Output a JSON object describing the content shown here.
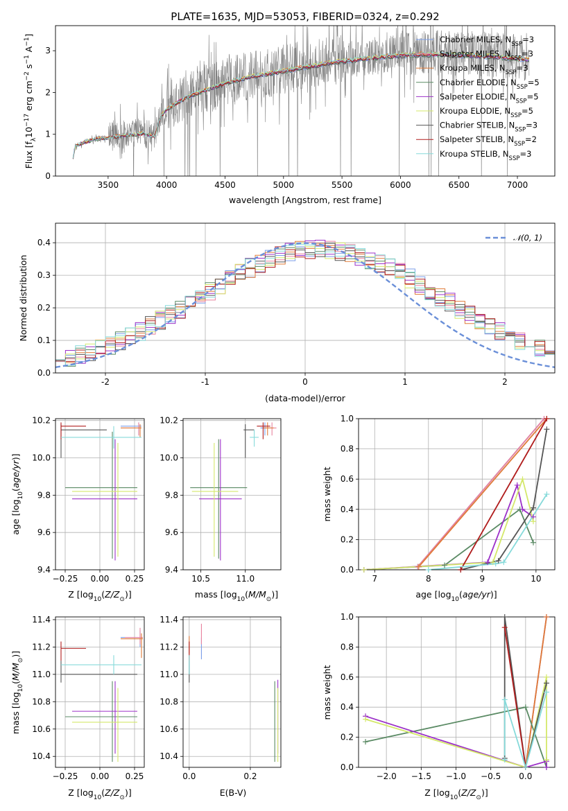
{
  "figure_title": "PLATE=1635, MJD=53053, FIBERID=0324, z=0.292",
  "colors": {
    "Chabrier MILES": "#7b9ee8",
    "Salpeter MILES": "#e8829e",
    "Kroupa MILES": "#e07b39",
    "Chabrier ELODIE": "#5a8a64",
    "Salpeter ELODIE": "#9b30c8",
    "Kroupa ELODIE": "#d4e86a",
    "Chabrier STELIB": "#555555",
    "Salpeter STELIB": "#b01c1c",
    "Kroupa STELIB": "#86dada",
    "data": "#808080",
    "normal": "#6a8fd8"
  },
  "chart_data": [
    {
      "id": "spectrum",
      "type": "line",
      "xlabel": "wavelength [Angstrom, rest frame]",
      "ylabel": "Flux [f_λ 10^-17 erg cm^-2 s^-1 A^-1]",
      "xlim": [
        3050,
        7320
      ],
      "ylim": [
        0,
        3.6
      ],
      "xticks": [
        3500,
        4000,
        4500,
        5000,
        5500,
        6000,
        6500,
        7000
      ],
      "yticks": [
        0,
        1,
        2,
        3
      ],
      "grid": false,
      "legend_position": "top-right",
      "legend": [
        {
          "label": "Chabrier MILES",
          "nssp": "3"
        },
        {
          "label": "Salpeter MILES",
          "nssp": "3"
        },
        {
          "label": "Kroupa MILES",
          "nssp": "3"
        },
        {
          "label": "Chabrier ELODIE",
          "nssp": "5"
        },
        {
          "label": "Salpeter ELODIE",
          "nssp": "5"
        },
        {
          "label": "Kroupa ELODIE",
          "nssp": "5"
        },
        {
          "label": "Chabrier STELIB",
          "nssp": "3"
        },
        {
          "label": "Salpeter STELIB",
          "nssp": "2"
        },
        {
          "label": "Kroupa STELIB",
          "nssp": "3"
        }
      ],
      "continuum": {
        "x": [
          3200,
          3220,
          3300,
          3400,
          3500,
          3600,
          3700,
          3800,
          3900,
          3950,
          4000,
          4100,
          4200,
          4300,
          4500,
          4700,
          4900,
          5000,
          5200,
          5400,
          5600,
          5800,
          6000,
          6200,
          6400,
          6600,
          6800,
          7000,
          7100
        ],
        "y": [
          0.45,
          0.72,
          0.82,
          0.9,
          0.93,
          0.97,
          1.0,
          1.03,
          0.95,
          1.45,
          1.62,
          1.8,
          1.95,
          2.05,
          2.25,
          2.4,
          2.5,
          2.55,
          2.65,
          2.75,
          2.82,
          2.88,
          2.93,
          2.95,
          2.95,
          2.92,
          2.9,
          2.85,
          2.82
        ]
      }
    },
    {
      "id": "residual-hist",
      "type": "line",
      "xlabel": "(data-model)/error",
      "ylabel": "Normed distribution",
      "xlim": [
        -2.5,
        2.5
      ],
      "ylim": [
        0,
        0.46
      ],
      "xticks": [
        -2,
        -1,
        0,
        1,
        2
      ],
      "yticks": [
        0.0,
        0.1,
        0.2,
        0.3,
        0.4
      ],
      "grid": true,
      "legend_position": "top-right",
      "legend_label": "𝒩(0, 1)",
      "bin_width": 0.1
    },
    {
      "id": "age-vs-Z",
      "type": "scatter",
      "xlabel": "Z [log10(Z/Z☉)]",
      "ylabel": "age [log10(age/yr)]",
      "xlim": [
        -0.32,
        0.32
      ],
      "ylim": [
        9.4,
        10.21
      ],
      "xticks": [
        -0.25,
        0.0,
        0.25
      ],
      "yticks": [
        9.4,
        9.6,
        9.8,
        10.0,
        10.2
      ],
      "grid": true
    },
    {
      "id": "age-vs-mass",
      "type": "scatter",
      "xlabel": "mass [log10(M/M☉)]",
      "xlim": [
        10.3,
        11.4
      ],
      "ylim": [
        9.4,
        10.21
      ],
      "xticks": [
        10.5,
        11.0
      ],
      "yticks": [
        9.4,
        9.6,
        9.8,
        10.0,
        10.2
      ],
      "grid": true
    },
    {
      "id": "weight-vs-age",
      "type": "line",
      "xlabel": "age [log10(age/yr)]",
      "ylabel": "mass weight",
      "xlim": [
        6.7,
        10.35
      ],
      "ylim": [
        0,
        1
      ],
      "xticks": [
        7,
        8,
        9,
        10
      ],
      "yticks": [
        0.0,
        0.2,
        0.4,
        0.6,
        0.8,
        1.0
      ],
      "grid": true,
      "series": [
        {
          "name": "Chabrier MILES",
          "x": [
            7.8,
            10.15
          ],
          "y": [
            0.02,
            1.0
          ]
        },
        {
          "name": "Salpeter MILES",
          "x": [
            7.8,
            10.15
          ],
          "y": [
            0.02,
            1.0
          ]
        },
        {
          "name": "Kroupa MILES",
          "x": [
            7.82,
            10.2
          ],
          "y": [
            0.02,
            1.0
          ]
        },
        {
          "name": "Chabrier ELODIE",
          "x": [
            6.8,
            8.3,
            9.7,
            9.95
          ],
          "y": [
            0.0,
            0.03,
            0.4,
            0.18
          ]
        },
        {
          "name": "Salpeter ELODIE",
          "x": [
            6.8,
            9.1,
            9.65,
            9.75,
            9.95
          ],
          "y": [
            0.0,
            0.05,
            0.56,
            0.4,
            0.35
          ]
        },
        {
          "name": "Kroupa ELODIE",
          "x": [
            6.8,
            9.2,
            9.75,
            9.95
          ],
          "y": [
            0.0,
            0.05,
            0.6,
            0.32
          ]
        },
        {
          "name": "Chabrier STELIB",
          "x": [
            8.6,
            9.3,
            9.95,
            10.2
          ],
          "y": [
            0.0,
            0.06,
            0.41,
            0.93
          ]
        },
        {
          "name": "Salpeter STELIB",
          "x": [
            8.6,
            10.2
          ],
          "y": [
            0.0,
            1.0
          ]
        },
        {
          "name": "Kroupa STELIB",
          "x": [
            8.0,
            9.25,
            9.4,
            10.2
          ],
          "y": [
            0.0,
            0.04,
            0.05,
            0.5
          ]
        }
      ]
    },
    {
      "id": "mass-vs-Z",
      "type": "scatter",
      "xlabel": "Z [log10(Z/Z☉)]",
      "ylabel": "mass [log10(M/M☉)]",
      "xlim": [
        -0.32,
        0.32
      ],
      "ylim": [
        10.32,
        11.42
      ],
      "xticks": [
        -0.25,
        0.0,
        0.25
      ],
      "yticks": [
        10.4,
        10.6,
        10.8,
        11.0,
        11.2,
        11.4
      ],
      "grid": true
    },
    {
      "id": "mass-vs-ebv",
      "type": "scatter",
      "xlabel": "E(B-V)",
      "xlim": [
        -0.02,
        0.3
      ],
      "ylim": [
        10.32,
        11.42
      ],
      "xticks": [
        0.0,
        0.2
      ],
      "yticks": [
        10.4,
        10.6,
        10.8,
        11.0,
        11.2,
        11.4
      ],
      "grid": true
    },
    {
      "id": "weight-vs-Z",
      "type": "line",
      "xlabel": "Z [log10(Z/Z☉)]",
      "ylabel": "mass weight",
      "xlim": [
        -2.4,
        0.42
      ],
      "ylim": [
        0,
        1
      ],
      "xticks": [
        -2.0,
        -1.5,
        -1.0,
        -0.5,
        0.0
      ],
      "yticks": [
        0.0,
        0.2,
        0.4,
        0.6,
        0.8,
        1.0
      ],
      "grid": true,
      "series": [
        {
          "name": "Chabrier MILES",
          "x": [
            0.0,
            0.3
          ],
          "y": [
            0.0,
            1.0
          ]
        },
        {
          "name": "Salpeter MILES",
          "x": [
            0.0,
            0.3
          ],
          "y": [
            0.0,
            1.0
          ]
        },
        {
          "name": "Kroupa MILES",
          "x": [
            0.0,
            0.3
          ],
          "y": [
            0.0,
            1.0
          ]
        },
        {
          "name": "Chabrier ELODIE",
          "x": [
            -2.3,
            -0.0,
            0.3,
            0.3
          ],
          "y": [
            0.17,
            0.4,
            0.0,
            0.05
          ]
        },
        {
          "name": "Salpeter ELODIE",
          "x": [
            -2.3,
            0.0,
            0.3,
            0.3
          ],
          "y": [
            0.34,
            0.0,
            0.04,
            0.0
          ]
        },
        {
          "name": "Kroupa ELODIE",
          "x": [
            -2.3,
            0.0,
            0.3,
            0.3
          ],
          "y": [
            0.32,
            0.0,
            0.6,
            0.05
          ]
        },
        {
          "name": "Chabrier STELIB",
          "x": [
            -0.3,
            -0.3,
            0.0,
            0.3
          ],
          "y": [
            0.06,
            1.0,
            0.0,
            0.56
          ]
        },
        {
          "name": "Salpeter STELIB",
          "x": [
            -0.3,
            0.0
          ],
          "y": [
            0.93,
            0.0
          ]
        },
        {
          "name": "Kroupa STELIB",
          "x": [
            -0.3,
            -0.3,
            0.0,
            0.3
          ],
          "y": [
            0.05,
            0.45,
            0.0,
            0.5
          ]
        }
      ]
    }
  ]
}
